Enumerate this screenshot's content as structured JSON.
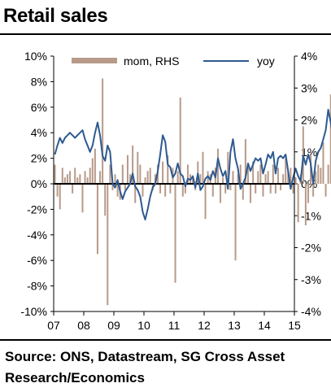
{
  "title": "Retail sales",
  "source": "Source: ONS, Datastream, SG Cross Asset Research/Economics",
  "chart_data": {
    "type": "bar+line",
    "x_tick_labels": [
      "07",
      "08",
      "09",
      "10",
      "11",
      "12",
      "13",
      "14",
      "15"
    ],
    "left_axis": {
      "min": -10,
      "max": 10,
      "step": 2,
      "tick_labels": [
        "-10%",
        "-8%",
        "-6%",
        "-4%",
        "-2%",
        "0%",
        "2%",
        "4%",
        "6%",
        "8%",
        "10%"
      ]
    },
    "right_axis": {
      "min": -4,
      "max": 4,
      "step": 1,
      "tick_labels": [
        "-4%",
        "-3%",
        "-2%",
        "-1%",
        "0%",
        "1%",
        "2%",
        "3%",
        "4%"
      ]
    },
    "legend": {
      "position": "top",
      "entries": [
        {
          "label": "mom, RHS",
          "color": "#B79A89"
        },
        {
          "label": "yoy",
          "color": "#2E5A91"
        }
      ]
    },
    "start_year": 2007,
    "series": [
      {
        "name": "mom, RHS",
        "type": "bar",
        "axis": "right",
        "color": "#B79A89",
        "values": [
          0.6,
          -0.4,
          -0.8,
          0.5,
          0.2,
          0.3,
          0.4,
          -0.3,
          0.5,
          0.2,
          0.3,
          -0.9,
          0.4,
          0.2,
          0.5,
          0.8,
          1.1,
          -2.2,
          0.4,
          3.3,
          -1.0,
          -3.8,
          0.6,
          -0.2,
          0.3,
          -0.4,
          -0.5,
          0.6,
          -0.2,
          0.9,
          0.3,
          1.2,
          -0.6,
          1.0,
          0.6,
          -0.4,
          0.2,
          0.4,
          0.5,
          -0.2,
          0.3,
          0.6,
          -0.3,
          0.7,
          -0.4,
          0.9,
          -0.3,
          0.5,
          -3.1,
          0.4,
          2.7,
          -0.4,
          -0.3,
          0.6,
          0.3,
          0.2,
          -0.2,
          0.7,
          0.3,
          1.0,
          -1.1,
          0.4,
          0.3,
          -0.4,
          0.5,
          1.1,
          -0.6,
          0.2,
          -0.3,
          1.0,
          -0.2,
          0.4,
          -2.4,
          0.3,
          0.6,
          -0.5,
          1.4,
          0.5,
          -0.6,
          0.7,
          -0.3,
          0.4,
          0.6,
          -0.4,
          0.3,
          0.4,
          -0.3,
          0.6,
          -0.3,
          0.5,
          -0.2,
          0.3,
          0.8,
          0.4,
          0.5,
          -0.3,
          0.2,
          -1.2,
          0.3,
          1.8,
          -1.3,
          -0.6,
          0.9,
          -0.4,
          0.4,
          0.6,
          0.5,
          1.3,
          -0.4,
          0.6,
          2.8,
          -0.8,
          -0.9,
          0.6,
          -0.3,
          0.5,
          2.2,
          0.3,
          -1.4,
          0.8,
          0.4,
          0.6,
          0.4,
          2.9,
          -0.5,
          -0.4,
          0.7,
          0.3,
          0.5,
          1.5,
          -0.3,
          1.6,
          0.4,
          0.8,
          1.1,
          -0.6
        ]
      },
      {
        "name": "yoy",
        "type": "line",
        "axis": "left",
        "color": "#2E5A91",
        "values": [
          2.3,
          3.0,
          3.6,
          3.2,
          3.6,
          3.8,
          4.0,
          3.8,
          3.6,
          3.8,
          4.0,
          4.2,
          3.5,
          3.0,
          2.5,
          3.0,
          4.0,
          4.8,
          3.8,
          2.2,
          1.8,
          3.0,
          2.5,
          0.0,
          -0.3,
          0.3,
          -0.6,
          -1.2,
          -0.6,
          -0.3,
          0.0,
          0.8,
          -0.2,
          -0.5,
          -1.0,
          -2.2,
          -2.8,
          -2.0,
          -1.0,
          -0.3,
          0.0,
          1.0,
          2.3,
          3.8,
          3.3,
          1.5,
          1.3,
          0.5,
          0.8,
          1.6,
          0.8,
          0.6,
          -0.2,
          0.4,
          0.3,
          0.6,
          -0.3,
          0.8,
          -0.5,
          -0.2,
          0.4,
          0.6,
          0.3,
          1.0,
          0.5,
          2.0,
          1.2,
          0.6,
          1.0,
          -0.4,
          2.5,
          3.5,
          2.0,
          1.2,
          -0.4,
          0.0,
          0.5,
          1.6,
          1.0,
          1.5,
          2.0,
          1.8,
          2.0,
          0.8,
          1.5,
          2.3,
          2.0,
          2.5,
          0.8,
          2.0,
          2.2,
          2.0,
          2.3,
          1.0,
          -0.4,
          0.5,
          1.2,
          0.6,
          0.2,
          2.2,
          1.5,
          2.3,
          1.6,
          0.0,
          1.8,
          2.5,
          2.8,
          3.5,
          4.2,
          5.8,
          4.8,
          3.5,
          2.2,
          3.0,
          4.8,
          4.3,
          3.2,
          3.8,
          5.8,
          6.2,
          2.5,
          4.5,
          2.2,
          5.0,
          4.2,
          3.8,
          5.0,
          5.8,
          6.8,
          4.2,
          3.6,
          5.5,
          4.9,
          6.6,
          5.1,
          3.6
        ]
      }
    ]
  }
}
